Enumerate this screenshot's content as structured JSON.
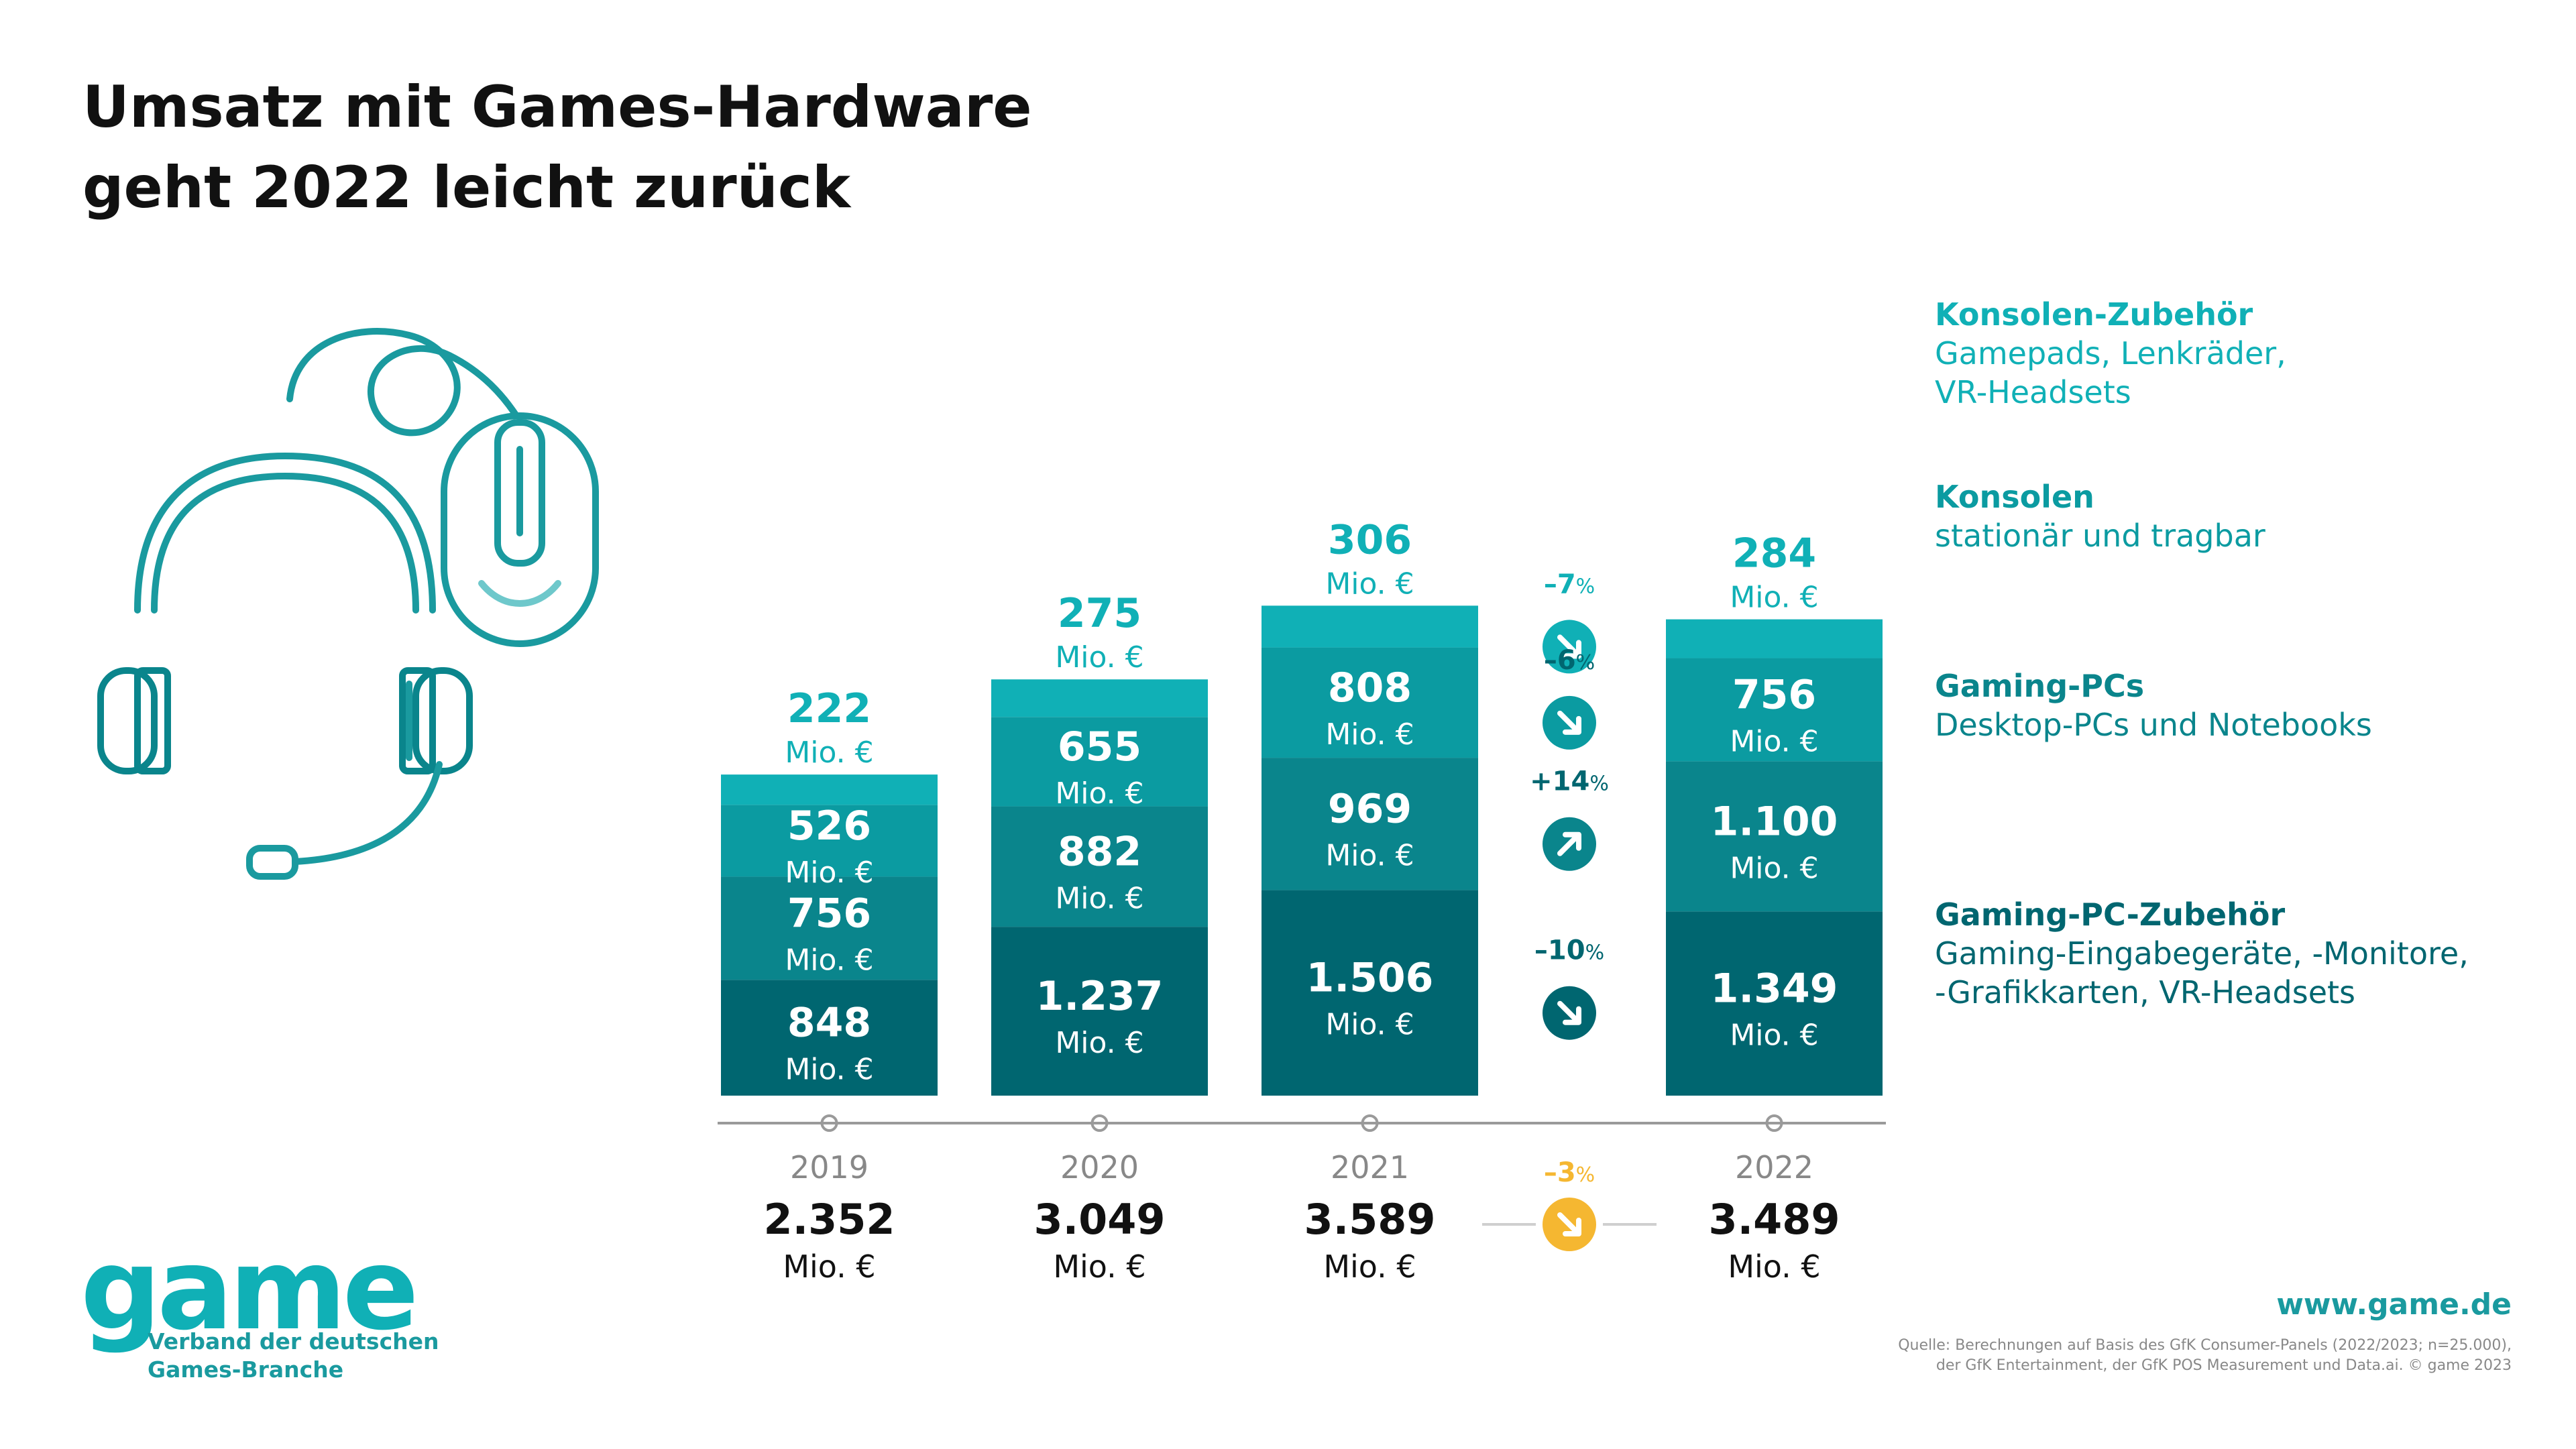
{
  "title": {
    "line1": "Umsatz mit Games-Hardware",
    "line2": "geht 2022 leicht zurück"
  },
  "colors": {
    "text": "#111111",
    "teal_accent": "#1a9a9f",
    "konsolen_zubehoer": "#10b0b6",
    "konsolen": "#0b9ba1",
    "gaming_pcs": "#0a858c",
    "gaming_pc_zubehoer": "#006670",
    "orange": "#f5b731",
    "axis": "#9a9a9a"
  },
  "chart_data": {
    "type": "bar",
    "stacked": true,
    "title": "Umsatz mit Games-Hardware geht 2022 leicht zurück",
    "unit": "Mio. €",
    "categories": [
      "2019",
      "2020",
      "2021",
      "2022"
    ],
    "series": [
      {
        "name": "Gaming-PC-Zubehör",
        "values": [
          848,
          1237,
          1506,
          1349
        ],
        "labels": [
          "848",
          "1.237",
          "1.506",
          "1.349"
        ]
      },
      {
        "name": "Gaming-PCs",
        "values": [
          756,
          882,
          969,
          1100
        ],
        "labels": [
          "756",
          "882",
          "969",
          "1.100"
        ]
      },
      {
        "name": "Konsolen",
        "values": [
          526,
          655,
          808,
          756
        ],
        "labels": [
          "526",
          "655",
          "808",
          "756"
        ]
      },
      {
        "name": "Konsolen-Zubehör",
        "values": [
          222,
          275,
          306,
          284
        ],
        "labels": [
          "222",
          "275",
          "306",
          "284"
        ]
      }
    ],
    "totals": {
      "values": [
        2352,
        3049,
        3589,
        3489
      ],
      "labels": [
        "2.352",
        "3.049",
        "3.589",
        "3.489"
      ]
    },
    "changes_2021_2022": [
      {
        "series": "Konsolen-Zubehör",
        "num": "–7",
        "pct": "%",
        "direction": "down"
      },
      {
        "series": "Konsolen",
        "num": "–6",
        "pct": "%",
        "direction": "down"
      },
      {
        "series": "Gaming-PCs",
        "num": "+14",
        "pct": "%",
        "direction": "up"
      },
      {
        "series": "Gaming-PC-Zubehör",
        "num": "–10",
        "pct": "%",
        "direction": "down"
      }
    ],
    "total_change": {
      "num": "–3",
      "pct": "%",
      "direction": "down"
    }
  },
  "legend": [
    {
      "title": "Konsolen-Zubehör",
      "sub": [
        "Gamepads, Lenkräder,",
        "VR-Headsets"
      ]
    },
    {
      "title": "Konsolen",
      "sub": [
        "stationär und tragbar"
      ]
    },
    {
      "title": "Gaming-PCs",
      "sub": [
        "Desktop-PCs und Notebooks"
      ]
    },
    {
      "title": "Gaming-PC-Zubehör",
      "sub": [
        "Gaming-Eingabegeräte, -Monitore,",
        "-Grafikkarten, VR-Headsets"
      ]
    }
  ],
  "icons": {
    "illustration": "headset-and-mouse-icon"
  },
  "logo": {
    "word": "game",
    "line1": "Verband der deutschen",
    "line2": "Games-Branche"
  },
  "footer": {
    "url": "www.game.de",
    "source_line1": "Quelle: Berechnungen auf Basis des GfK Consumer-Panels (2022/2023; n=25.000),",
    "source_line2": "der GfK Entertainment, der GfK POS Measurement und Data.ai. © game 2023"
  }
}
